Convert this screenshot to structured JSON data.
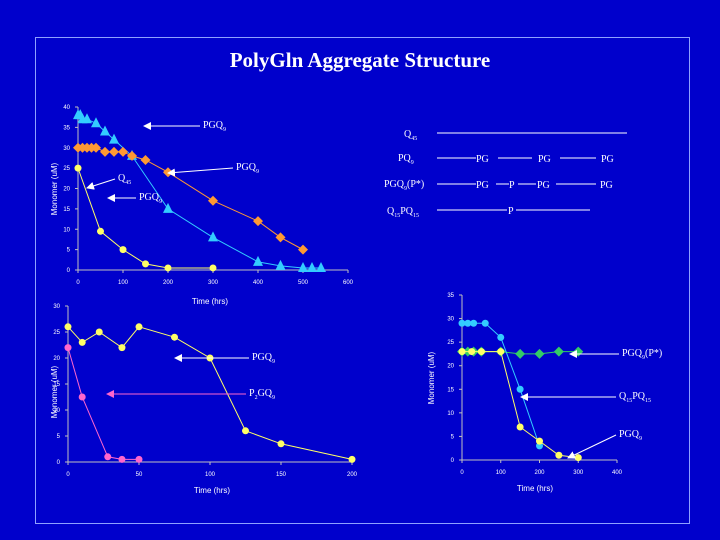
{
  "title": "PolyGln Aggregate Structure",
  "colors": {
    "background": "#0000cc",
    "axis": "#c0c0c0",
    "text": "#ffffff",
    "yellow": "#ffff66",
    "orange": "#ff9933",
    "light_blue": "#33ccff",
    "pink": "#ff66cc",
    "green": "#33cc66",
    "arrow_white": "#ffffff",
    "arrow_pink": "#ff66cc"
  },
  "legend": {
    "rows": [
      {
        "label": "Q45",
        "parts": []
      },
      {
        "label": "PQ9",
        "parts": [
          "PG",
          "PG",
          "PG"
        ]
      },
      {
        "label": "PGQ9(P*)",
        "parts": [
          "PG",
          "P",
          "PG",
          "PG"
        ]
      },
      {
        "label": "Q15PQ15",
        "parts": [
          "P"
        ]
      }
    ]
  },
  "chart_data": [
    {
      "type": "line",
      "ylabel": "Monomer (uM)",
      "xlabel": "Time (hrs)",
      "xlim": [
        0,
        600
      ],
      "ylim": [
        0,
        40
      ],
      "xticks": [
        0,
        100,
        200,
        300,
        400,
        500,
        600
      ],
      "yticks": [
        0,
        5,
        10,
        15,
        20,
        25,
        30,
        35,
        40
      ],
      "series": [
        {
          "marker": "triangle",
          "color": "#33ccff",
          "x": [
            0,
            5,
            10,
            20,
            40,
            60,
            80,
            120,
            200,
            300,
            400,
            450,
            500,
            520,
            540
          ],
          "y": [
            38,
            38,
            37,
            37,
            36,
            34,
            32,
            28,
            15,
            8,
            2,
            1,
            0.5,
            0.5,
            0.5
          ]
        },
        {
          "marker": "diamond",
          "color": "#ff9933",
          "x": [
            0,
            10,
            20,
            30,
            40,
            60,
            80,
            100,
            120,
            150,
            200,
            300,
            400,
            450,
            500
          ],
          "y": [
            30,
            30,
            30,
            30,
            30,
            29,
            29,
            29,
            28,
            27,
            24,
            17,
            12,
            8,
            5
          ]
        },
        {
          "marker": "circle",
          "color": "#ffff66",
          "x": [
            0,
            50,
            100,
            150,
            200,
            300
          ],
          "y": [
            25,
            9.5,
            5,
            1.5,
            0.5,
            0.5
          ]
        }
      ],
      "annotations": [
        "PGQ9",
        "Q45",
        "PGQ9",
        "PGQ9"
      ]
    },
    {
      "type": "line",
      "ylabel": "Monomer (uM)",
      "xlabel": "Time (hrs)",
      "xlim": [
        0,
        200
      ],
      "ylim": [
        0,
        30
      ],
      "xticks": [
        0,
        50,
        100,
        150,
        200
      ],
      "yticks": [
        0,
        5,
        10,
        15,
        20,
        25,
        30
      ],
      "series": [
        {
          "marker": "circle",
          "color": "#ffff66",
          "x": [
            0,
            10,
            22,
            38,
            50,
            75,
            100,
            125,
            150,
            200
          ],
          "y": [
            26,
            23,
            25,
            22,
            26,
            24,
            20,
            6,
            3.5,
            0.5
          ]
        },
        {
          "marker": "circle",
          "color": "#ff66cc",
          "x": [
            0,
            10,
            28,
            38,
            50
          ],
          "y": [
            22,
            12.5,
            1,
            0.5,
            0.5
          ]
        }
      ],
      "annotations": [
        "PGQ9",
        "P2GQ9"
      ]
    },
    {
      "type": "line",
      "ylabel": "Monomer (uM)",
      "xlabel": "Time (hrs)",
      "xlim": [
        0,
        400
      ],
      "ylim": [
        0,
        35
      ],
      "xticks": [
        0,
        100,
        200,
        300,
        400
      ],
      "yticks": [
        0,
        5,
        10,
        15,
        20,
        25,
        30,
        35
      ],
      "series": [
        {
          "marker": "diamond",
          "color": "#33cc66",
          "x": [
            0,
            15,
            30,
            50,
            100,
            150,
            200,
            250,
            300
          ],
          "y": [
            23,
            23,
            23,
            23,
            23,
            22.5,
            22.5,
            23,
            23
          ]
        },
        {
          "marker": "circle",
          "color": "#33ccff",
          "x": [
            0,
            15,
            30,
            60,
            100,
            150,
            200
          ],
          "y": [
            29,
            29,
            29,
            29,
            26,
            15,
            3
          ]
        },
        {
          "marker": "circle",
          "color": "#ffff66",
          "x": [
            0,
            25,
            50,
            100,
            150,
            200,
            250,
            300
          ],
          "y": [
            23,
            23,
            23,
            23,
            7,
            4,
            1,
            0.5
          ]
        }
      ],
      "annotations": [
        "PGQ9(P*)",
        "Q15PQ15",
        "PGQ9"
      ]
    }
  ]
}
